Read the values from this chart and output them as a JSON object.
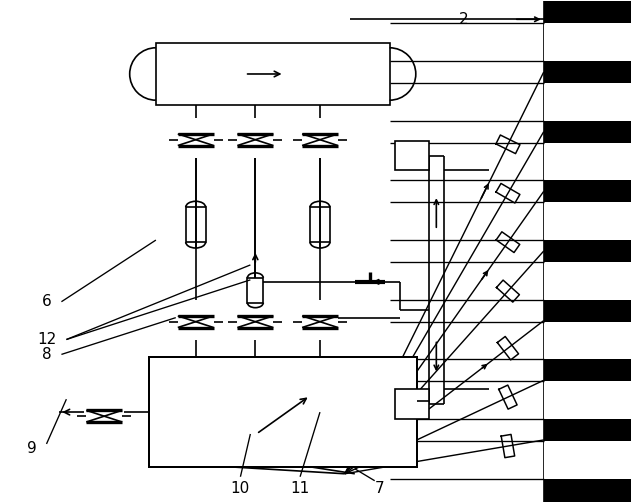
{
  "bg_color": "#ffffff",
  "line_color": "#000000",
  "lw": 1.2,
  "fig_width": 6.33,
  "fig_height": 5.03
}
